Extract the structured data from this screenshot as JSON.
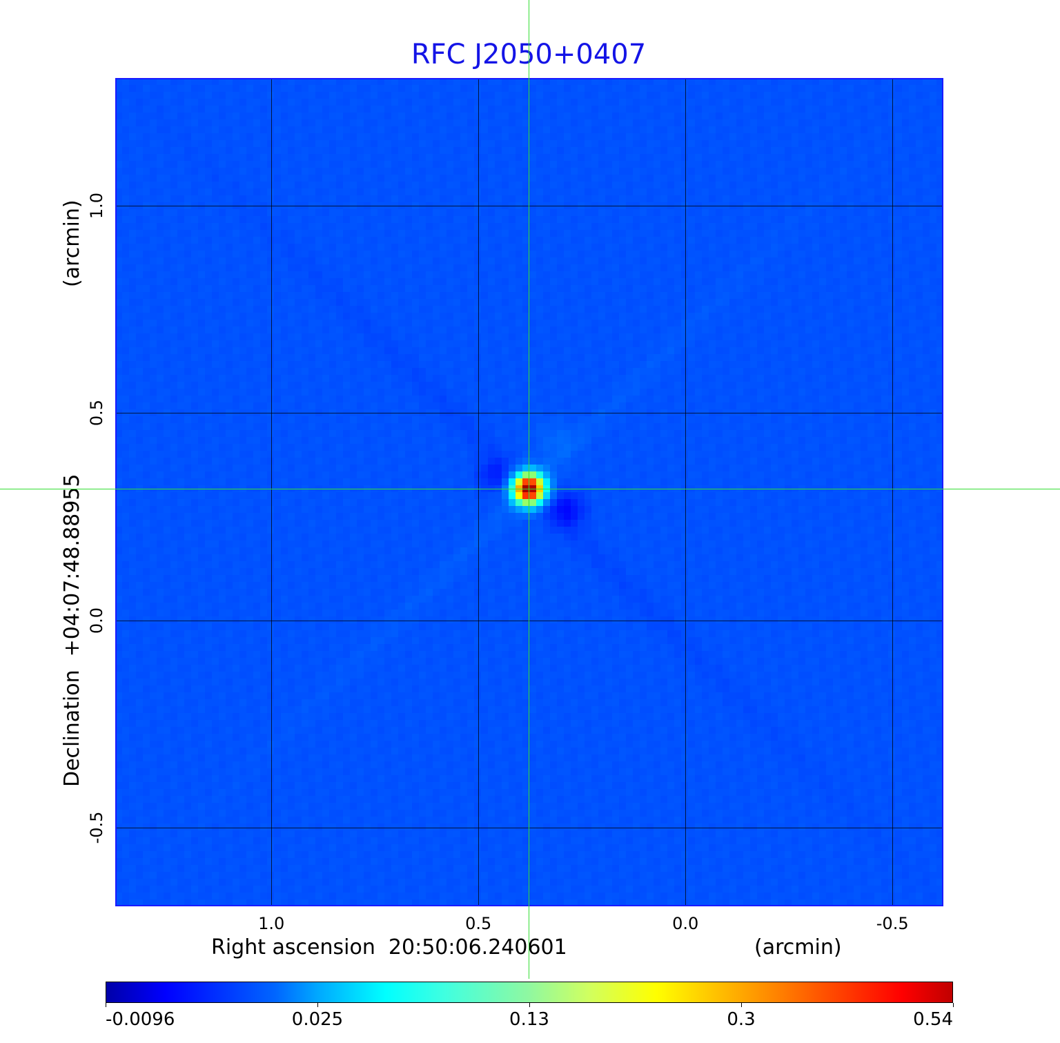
{
  "chart_data": {
    "type": "heatmap",
    "title": "RFC J2050+0407",
    "xlabel": "Right ascension  20:50:06.240601",
    "xunit": "(arcmin)",
    "ylabel": "Declination  +04:07:48.88955",
    "yunit": "(arcmin)",
    "xlim": [
      1.377,
      -0.623
    ],
    "ylim": [
      -0.69,
      1.308
    ],
    "xticks": [
      "1.0",
      "0.5",
      "0.0",
      "-0.5"
    ],
    "xtick_values": [
      1.0,
      0.5,
      0.0,
      -0.5
    ],
    "yticks": [
      "1.0",
      "0.5",
      "0.0",
      "-0.5"
    ],
    "ytick_values": [
      1.0,
      0.5,
      0.0,
      -0.5
    ],
    "grid": true,
    "colormap": "jet",
    "colorbar": {
      "ticks": [
        "-0.0096",
        "0.025",
        "0.13",
        "0.3",
        "0.54"
      ],
      "range": [
        -0.0096,
        0.54
      ],
      "placement": "bottom"
    },
    "source": {
      "x": 0.378,
      "y": 0.317,
      "peak": 0.54
    },
    "crosshair": {
      "x": 0.378,
      "y": 0.317,
      "color": "#33dd33"
    },
    "background_color": "#1450ff",
    "title_color": "#1414e6"
  }
}
